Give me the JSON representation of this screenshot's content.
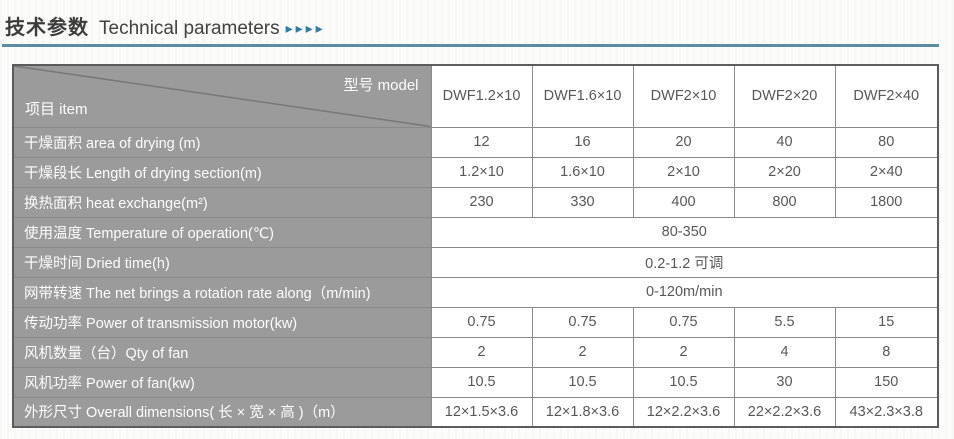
{
  "header": {
    "title_zh": "技术参数",
    "title_en": "Technical parameters",
    "arrows": "▸▸▸▸"
  },
  "colors": {
    "accent_teal": "#2e7ca3",
    "underline": "#5a8ca4",
    "label_cell_gray": "#9b9b9b",
    "outer_border": "#5c5c5c",
    "grid_line": "#8a8a8a",
    "data_text": "#585858",
    "label_text": "#fdfdfd"
  },
  "table": {
    "corner": {
      "model_label": "型号 model",
      "item_label": "项目 item"
    },
    "columns": [
      "DWF1.2×10",
      "DWF1.6×10",
      "DWF2×10",
      "DWF2×20",
      "DWF2×40"
    ],
    "rows": [
      {
        "label": "干燥面积 area of drying (m)",
        "values": [
          "12",
          "16",
          "20",
          "40",
          "80"
        ]
      },
      {
        "label": "干燥段长 Length of drying section(m)",
        "values": [
          "1.2×10",
          "1.6×10",
          "2×10",
          "2×20",
          "2×40"
        ]
      },
      {
        "label": "换热面积 heat exchange(m²)",
        "values": [
          "230",
          "330",
          "400",
          "800",
          "1800"
        ]
      },
      {
        "label": "使用温度 Temperature of operation(℃)",
        "span": "80-350"
      },
      {
        "label": "干燥时间 Dried time(h)",
        "span": "0.2-1.2 可调"
      },
      {
        "label": "网带转速 The net brings a rotation rate along（m/min)",
        "span": "0-120m/min"
      },
      {
        "label": "传动功率 Power of transmission motor(kw)",
        "values": [
          "0.75",
          "0.75",
          "0.75",
          "5.5",
          "15"
        ]
      },
      {
        "label": "风机数量（台）Qty of fan",
        "values": [
          "2",
          "2",
          "2",
          "4",
          "8"
        ]
      },
      {
        "label": "风机功率 Power of fan(kw)",
        "values": [
          "10.5",
          "10.5",
          "10.5",
          "30",
          "150"
        ]
      },
      {
        "label": "外形尺寸 Overall dimensions( 长 × 宽 × 高 )（m）",
        "values": [
          "12×1.5×3.6",
          "12×1.8×3.6",
          "12×2.2×3.6",
          "22×2.2×3.6",
          "43×2.3×3.8"
        ]
      }
    ]
  }
}
